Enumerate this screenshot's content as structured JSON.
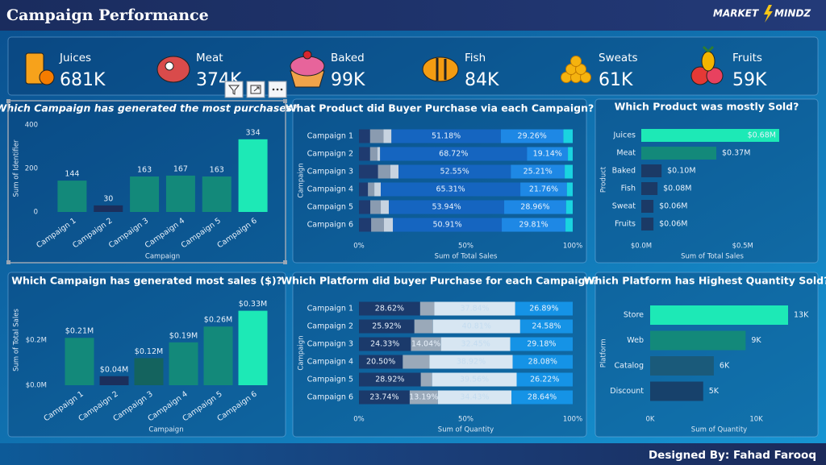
{
  "header": {
    "title": "Campaign Performance",
    "logo_left": "MARKET",
    "logo_right": "MINDZ"
  },
  "kpis": [
    {
      "name": "Juices",
      "value": "681K"
    },
    {
      "name": "Meat",
      "value": "374K"
    },
    {
      "name": "Baked",
      "value": "99K"
    },
    {
      "name": "Fish",
      "value": "84K"
    },
    {
      "name": "Sweats",
      "value": "61K"
    },
    {
      "name": "Fruits",
      "value": "59K"
    }
  ],
  "footer": {
    "credit": "Designed By: Fahad Farooq"
  },
  "chart_data": [
    {
      "type": "bar",
      "title": "Which Campaign has generated the most purchases?",
      "categories": [
        "Campaign 1",
        "Campaign 2",
        "Campaign 3",
        "Campaign 4",
        "Campaign 5",
        "Campaign 6"
      ],
      "values": [
        144,
        30,
        163,
        167,
        163,
        334
      ],
      "colors": [
        "#13897a",
        "#1b2f5c",
        "#13897a",
        "#13897a",
        "#13897a",
        "#1de9b6"
      ],
      "ylim": [
        0,
        400
      ],
      "yticks": [
        0,
        200,
        400
      ],
      "y_label": "Sum of Identifier",
      "x_label": "Campaign"
    },
    {
      "type": "stackedhbar",
      "title": "What Product did Buyer Purchase via each Campaign?",
      "categories": [
        "Campaign 1",
        "Campaign 2",
        "Campaign 3",
        "Campaign 4",
        "Campaign 5",
        "Campaign 6"
      ],
      "series": [
        {
          "color": "#1f3b70",
          "values": [
            5.2,
            5.2,
            8.9,
            4.2,
            5.3,
            5.7
          ]
        },
        {
          "color": "#8a9bb0",
          "values": [
            6.3,
            3.4,
            5.8,
            3.0,
            4.9,
            6.0
          ]
        },
        {
          "color": "#c7d3e0",
          "values": [
            3.7,
            1.3,
            3.8,
            3.0,
            3.8,
            4.2
          ]
        },
        {
          "color": "#1565c0",
          "values": [
            51.18,
            68.72,
            52.55,
            65.31,
            53.94,
            50.91
          ],
          "value_labels": [
            "51.18%",
            "68.72%",
            "52.55%",
            "65.31%",
            "53.94%",
            "50.91%"
          ]
        },
        {
          "color": "#1e88e5",
          "values": [
            29.26,
            19.14,
            25.21,
            21.76,
            28.96,
            29.81
          ],
          "value_labels": [
            "29.26%",
            "19.14%",
            "25.21%",
            "21.76%",
            "28.96%",
            "29.81%"
          ]
        },
        {
          "color": "#1ad3e0",
          "values": [
            4.36,
            2.24,
            3.74,
            2.73,
            3.1,
            3.38
          ]
        }
      ],
      "xlim": [
        0,
        100
      ],
      "xticks": [
        {
          "value": 0,
          "label": "0%"
        },
        {
          "value": 50,
          "label": "50%"
        },
        {
          "value": 100,
          "label": "100%"
        }
      ],
      "y_label": "Campaign",
      "x_label": "Sum of Total Sales"
    },
    {
      "type": "hbar",
      "title": "Which Product was mostly Sold?",
      "categories": [
        "Juices",
        "Meat",
        "Baked",
        "Fish",
        "Sweat",
        "Fruits"
      ],
      "values": [
        0.68,
        0.37,
        0.1,
        0.08,
        0.06,
        0.06
      ],
      "value_labels": [
        "$0.68M",
        "$0.37M",
        "$0.10M",
        "$0.08M",
        "$0.06M",
        "$0.06M"
      ],
      "colors": [
        "#1de9b6",
        "#13897a",
        "#1b3a66",
        "#1b3a66",
        "#1b3a66",
        "#1b3a66"
      ],
      "xlim": [
        0,
        0.7
      ],
      "xticks": [
        {
          "value": 0,
          "label": "$0.0M"
        },
        {
          "value": 0.5,
          "label": "$0.5M"
        }
      ],
      "y_label": "Product",
      "x_label": "Sum of Total Sales"
    },
    {
      "type": "bar",
      "title": "Which Campaign has generated most sales ($)?",
      "categories": [
        "Campaign 1",
        "Campaign 2",
        "Campaign 3",
        "Campaign 4",
        "Campaign 5",
        "Campaign 6"
      ],
      "values": [
        0.21,
        0.04,
        0.12,
        0.19,
        0.26,
        0.33
      ],
      "value_labels": [
        "$0.21M",
        "$0.04M",
        "$0.12M",
        "$0.19M",
        "$0.26M",
        "$0.33M"
      ],
      "colors": [
        "#13897a",
        "#1b2f5c",
        "#14635e",
        "#13897a",
        "#13897a",
        "#1de9b6"
      ],
      "ylim": [
        0,
        0.4
      ],
      "yticks": [
        {
          "value": 0,
          "label": "$0.0M"
        },
        {
          "value": 0.2,
          "label": "$0.2M"
        }
      ],
      "y_label": "Sum of Total Sales",
      "x_label": "Campaign"
    },
    {
      "type": "stackedhbar",
      "title": "Which Platform did buyer Purchase for each Campaign?",
      "categories": [
        "Campaign 1",
        "Campaign 2",
        "Campaign 3",
        "Campaign 4",
        "Campaign 5",
        "Campaign 6"
      ],
      "series": [
        {
          "color": "#1b3a6b",
          "values": [
            28.62,
            25.92,
            24.33,
            20.5,
            28.92,
            23.74
          ],
          "value_labels": [
            "28.62%",
            "25.92%",
            "24.33%",
            "20.50%",
            "28.92%",
            "23.74%"
          ]
        },
        {
          "color": "#9aa9b9",
          "values": [
            6.65,
            8.69,
            14.04,
            12.5,
            5.3,
            13.19
          ],
          "value_labels": [
            null,
            null,
            "14.04%",
            null,
            null,
            "13.19%"
          ]
        },
        {
          "color": "#d7e6f2",
          "values": [
            37.84,
            40.81,
            32.45,
            38.92,
            39.56,
            34.43
          ],
          "value_labels": [
            "37.84%",
            "40.81%",
            "32.45%",
            "38.92%",
            "39.56%",
            "34.43%"
          ]
        },
        {
          "color": "#1593e6",
          "values": [
            26.89,
            24.58,
            29.18,
            28.08,
            26.22,
            28.64
          ],
          "value_labels": [
            "26.89%",
            "24.58%",
            "29.18%",
            "28.08%",
            "26.22%",
            "28.64%"
          ]
        }
      ],
      "xlim": [
        0,
        100
      ],
      "xticks": [
        {
          "value": 0,
          "label": "0%"
        },
        {
          "value": 50,
          "label": "50%"
        },
        {
          "value": 100,
          "label": "100%"
        }
      ],
      "y_label": "Campaign",
      "x_label": "Sum of Quantity"
    },
    {
      "type": "hbar",
      "title": "Which Platform has Highest Quantity Sold?",
      "categories": [
        "Store",
        "Web",
        "Catalog",
        "Discount"
      ],
      "values": [
        13,
        9,
        6,
        5
      ],
      "value_labels": [
        "13K",
        "9K",
        "6K",
        "5K"
      ],
      "colors": [
        "#1de9b6",
        "#13897a",
        "#1a5a7a",
        "#17416b"
      ],
      "xlim": [
        0,
        13
      ],
      "xticks": [
        {
          "value": 0,
          "label": "0K"
        },
        {
          "value": 10,
          "label": "10K"
        }
      ],
      "y_label": "Platform",
      "x_label": "Sum of Quantity"
    }
  ]
}
